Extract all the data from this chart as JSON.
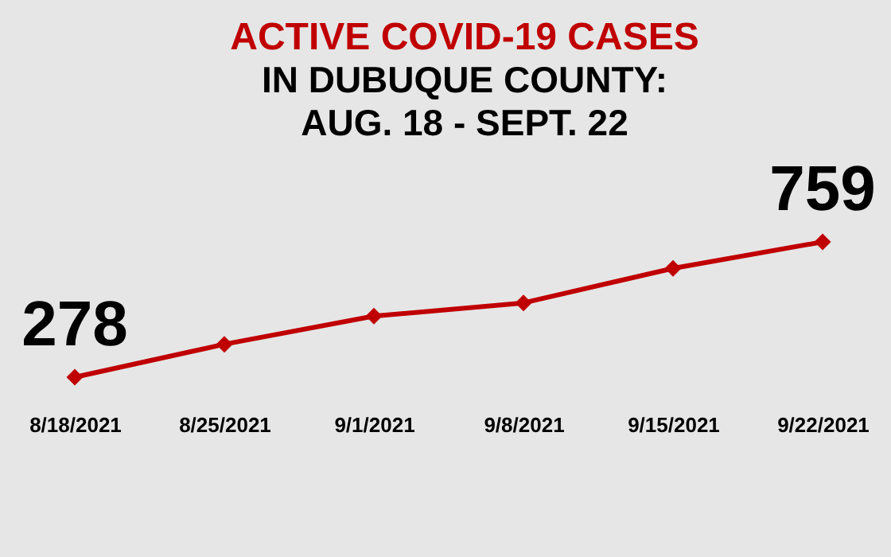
{
  "chart_data": {
    "type": "line",
    "title": "ACTIVE COVID-19 CASES",
    "subtitle": "IN DUBUQUE COUNTY:\nAUG. 18 - SEPT. 22",
    "categories": [
      "8/18/2021",
      "8/25/2021",
      "9/1/2021",
      "9/8/2021",
      "9/15/2021",
      "9/22/2021"
    ],
    "series": [
      {
        "color": "#c00000",
        "values": [
          278,
          395,
          495,
          542,
          665,
          759
        ],
        "value_labels": [
          "278",
          null,
          null,
          null,
          null,
          "759"
        ]
      }
    ],
    "marker": "diamond",
    "tick_labels": "x"
  }
}
